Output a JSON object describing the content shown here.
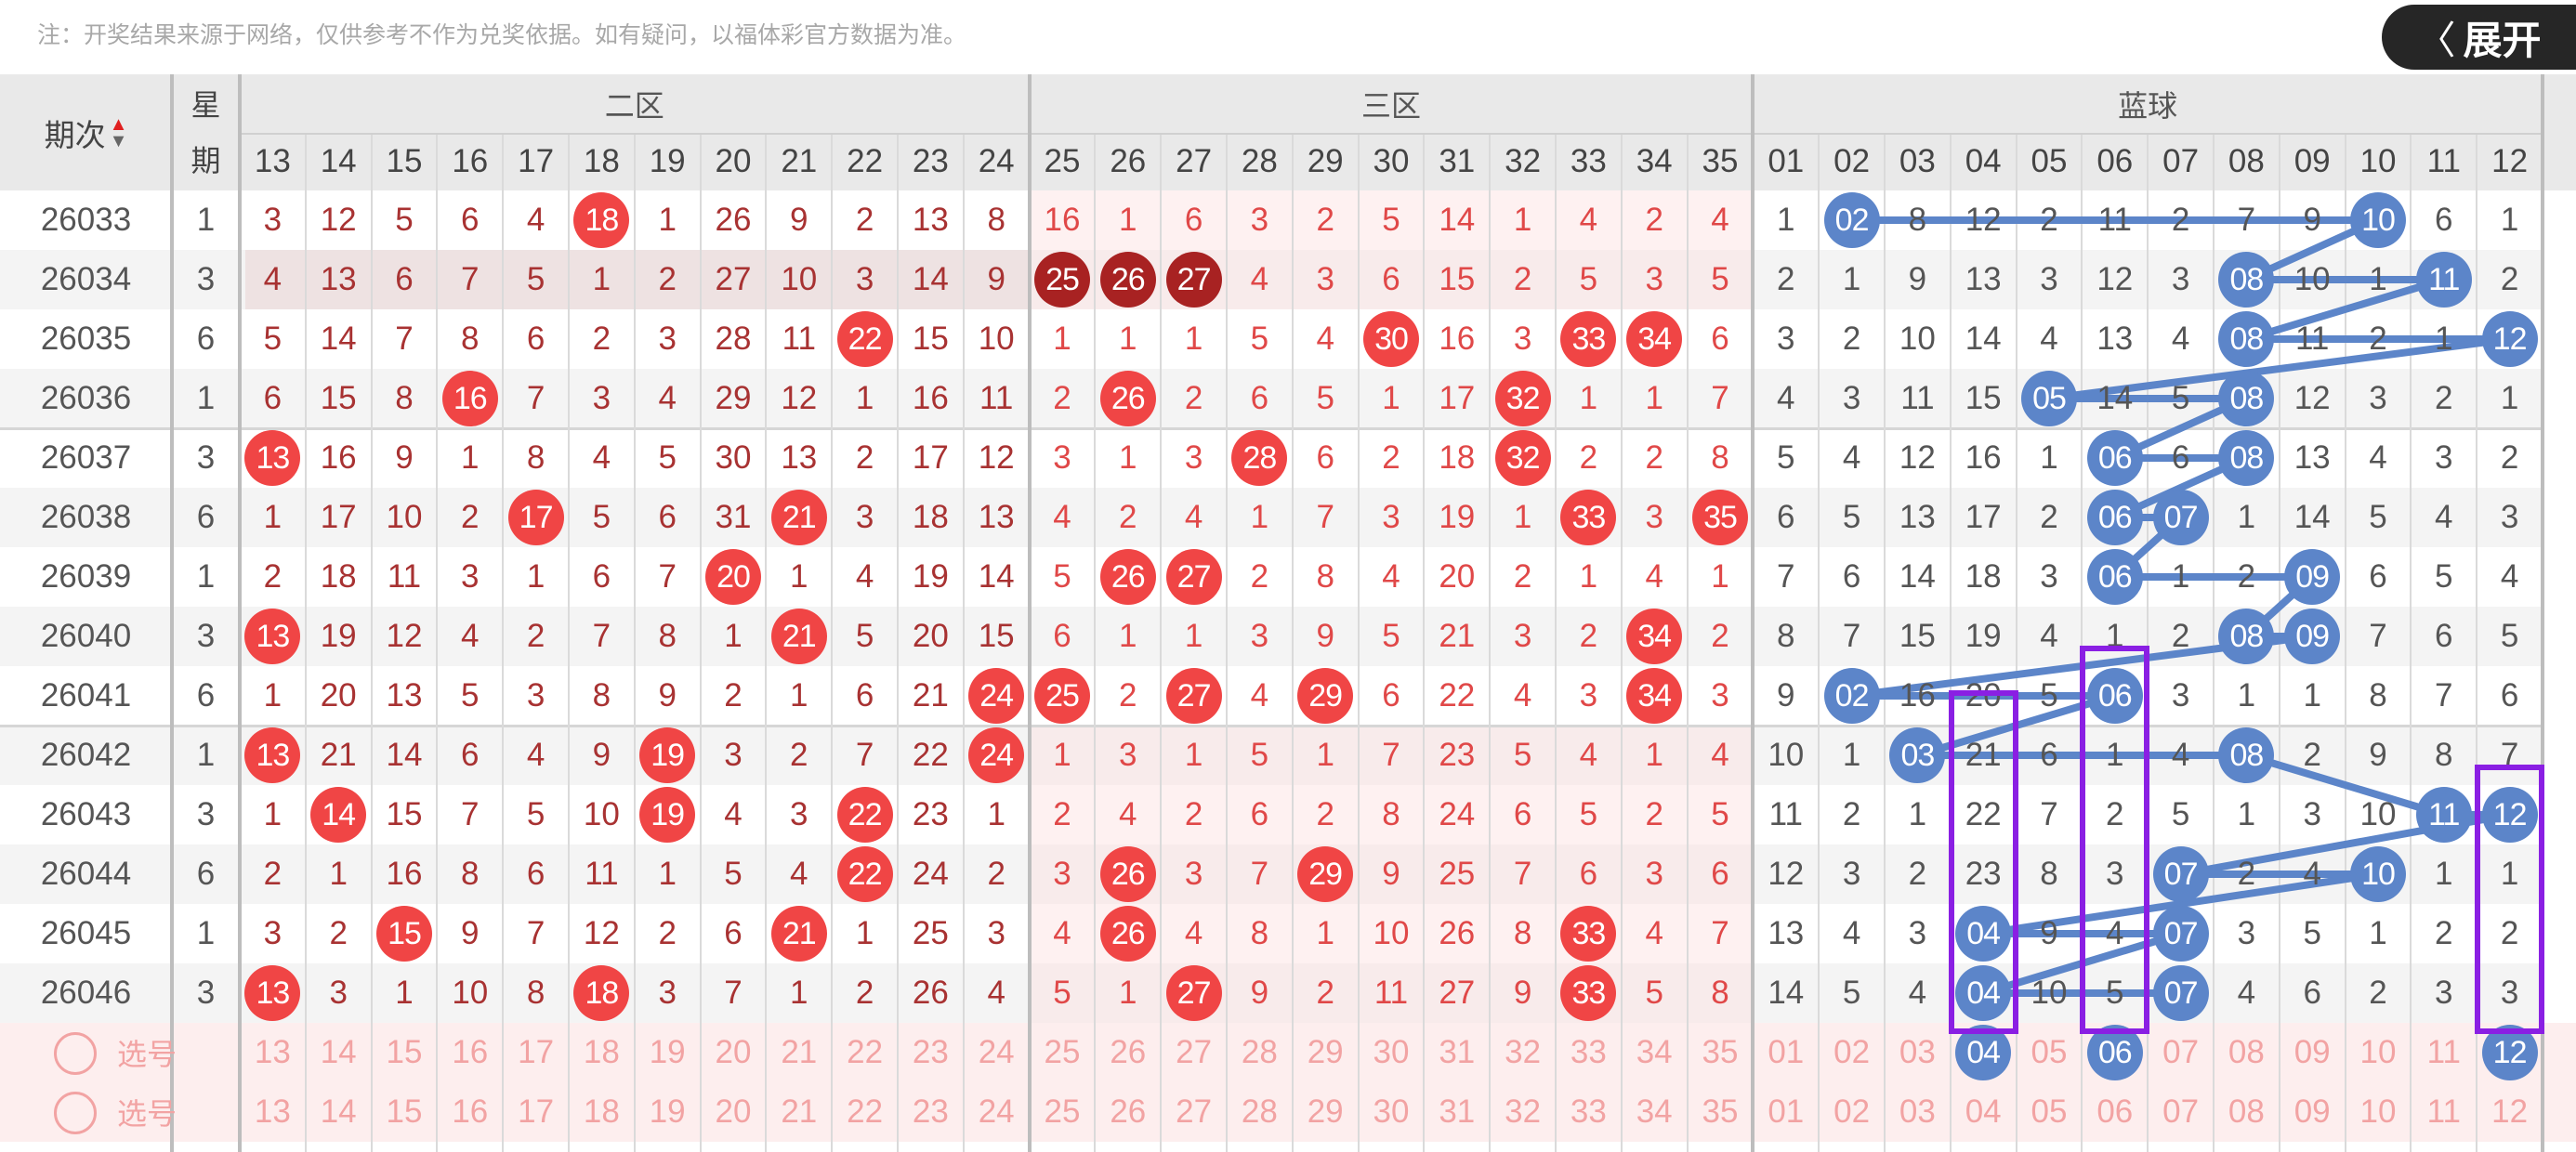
{
  "notice": "注：开奖结果来源于网络，仅供参考不作为兑奖依据。如有疑问，以福体彩官方数据为准。",
  "header": {
    "period_label": "期次",
    "weekday_label": [
      "星",
      "期"
    ],
    "sort_icons": [
      "sort-up-icon",
      "sort-down-icon"
    ],
    "zones": [
      {
        "label": "二区",
        "numbers": [
          "13",
          "14",
          "15",
          "16",
          "17",
          "18",
          "19",
          "20",
          "21",
          "22",
          "23",
          "24"
        ]
      },
      {
        "label": "三区",
        "numbers": [
          "25",
          "26",
          "27",
          "28",
          "29",
          "30",
          "31",
          "32",
          "33",
          "34",
          "35"
        ]
      },
      {
        "label": "蓝球",
        "numbers": [
          "01",
          "02",
          "03",
          "04",
          "05",
          "06",
          "07",
          "08",
          "09",
          "10",
          "11",
          "12"
        ]
      }
    ]
  },
  "rows": [
    {
      "period": "26033",
      "weekday": "1",
      "zone2": [
        "3",
        "12",
        "5",
        "6",
        "4",
        "18",
        "1",
        "26",
        "9",
        "2",
        "13",
        "8"
      ],
      "zone2_hits": [
        "18"
      ],
      "zone3": [
        "16",
        "1",
        "6",
        "3",
        "2",
        "5",
        "14",
        "1",
        "4",
        "2",
        "4"
      ],
      "zone3_hits": [],
      "blue": [
        "1",
        "02",
        "8",
        "12",
        "2",
        "11",
        "2",
        "7",
        "9",
        "10",
        "6",
        "1"
      ],
      "blue_hits": [
        "02",
        "10"
      ]
    },
    {
      "period": "26034",
      "weekday": "3",
      "zone2": [
        "4",
        "13",
        "6",
        "7",
        "5",
        "1",
        "2",
        "27",
        "10",
        "3",
        "14",
        "9"
      ],
      "zone2_hits": [],
      "zone3": [
        "25",
        "26",
        "27",
        "4",
        "3",
        "6",
        "15",
        "2",
        "5",
        "3",
        "5"
      ],
      "zone3_hits": [
        "25",
        "26",
        "27"
      ],
      "blue": [
        "2",
        "1",
        "9",
        "13",
        "3",
        "12",
        "3",
        "08",
        "10",
        "1",
        "11",
        "2"
      ],
      "blue_hits": [
        "08",
        "11"
      ],
      "highlighted": true
    },
    {
      "period": "26035",
      "weekday": "6",
      "zone2": [
        "5",
        "14",
        "7",
        "8",
        "6",
        "2",
        "3",
        "28",
        "11",
        "22",
        "15",
        "10"
      ],
      "zone2_hits": [
        "22"
      ],
      "zone3": [
        "1",
        "1",
        "1",
        "5",
        "4",
        "30",
        "16",
        "3",
        "33",
        "34",
        "6"
      ],
      "zone3_hits": [
        "30",
        "33",
        "34"
      ],
      "blue": [
        "3",
        "2",
        "10",
        "14",
        "4",
        "13",
        "4",
        "08",
        "11",
        "2",
        "1",
        "12"
      ],
      "blue_hits": [
        "08",
        "12"
      ]
    },
    {
      "period": "26036",
      "weekday": "1",
      "zone2": [
        "6",
        "15",
        "8",
        "16",
        "7",
        "3",
        "4",
        "29",
        "12",
        "1",
        "16",
        "11"
      ],
      "zone2_hits": [
        "16"
      ],
      "zone3": [
        "2",
        "26",
        "2",
        "6",
        "5",
        "1",
        "17",
        "32",
        "1",
        "1",
        "7"
      ],
      "zone3_hits": [
        "26",
        "32"
      ],
      "blue": [
        "4",
        "3",
        "11",
        "15",
        "05",
        "14",
        "5",
        "08",
        "12",
        "3",
        "2",
        "1"
      ],
      "blue_hits": [
        "05",
        "08"
      ]
    },
    {
      "period": "26037",
      "weekday": "3",
      "zone2": [
        "13",
        "16",
        "9",
        "1",
        "8",
        "4",
        "5",
        "30",
        "13",
        "2",
        "17",
        "12"
      ],
      "zone2_hits": [
        "13"
      ],
      "zone3": [
        "3",
        "1",
        "3",
        "28",
        "6",
        "2",
        "18",
        "32",
        "2",
        "2",
        "8"
      ],
      "zone3_hits": [
        "28",
        "32"
      ],
      "blue": [
        "5",
        "4",
        "12",
        "16",
        "1",
        "06",
        "6",
        "08",
        "13",
        "4",
        "3",
        "2"
      ],
      "blue_hits": [
        "06",
        "08"
      ]
    },
    {
      "period": "26038",
      "weekday": "6",
      "zone2": [
        "1",
        "17",
        "10",
        "2",
        "17",
        "5",
        "6",
        "31",
        "21",
        "3",
        "18",
        "13"
      ],
      "zone2_hits": [
        "17",
        "21"
      ],
      "zone3": [
        "4",
        "2",
        "4",
        "1",
        "7",
        "3",
        "19",
        "1",
        "33",
        "3",
        "35"
      ],
      "zone3_hits": [
        "33",
        "35"
      ],
      "blue": [
        "6",
        "5",
        "13",
        "17",
        "2",
        "06",
        "07",
        "1",
        "14",
        "5",
        "4",
        "3"
      ],
      "blue_hits": [
        "06",
        "07"
      ]
    },
    {
      "period": "26039",
      "weekday": "1",
      "zone2": [
        "2",
        "18",
        "11",
        "3",
        "1",
        "6",
        "7",
        "20",
        "1",
        "4",
        "19",
        "14"
      ],
      "zone2_hits": [
        "20"
      ],
      "zone3": [
        "5",
        "26",
        "27",
        "2",
        "8",
        "4",
        "20",
        "2",
        "1",
        "4",
        "1"
      ],
      "zone3_hits": [
        "26",
        "27"
      ],
      "blue": [
        "7",
        "6",
        "14",
        "18",
        "3",
        "06",
        "1",
        "2",
        "09",
        "6",
        "5",
        "4"
      ],
      "blue_hits": [
        "06",
        "09"
      ]
    },
    {
      "period": "26040",
      "weekday": "3",
      "zone2": [
        "13",
        "19",
        "12",
        "4",
        "2",
        "7",
        "8",
        "1",
        "21",
        "5",
        "20",
        "15"
      ],
      "zone2_hits": [
        "13",
        "21"
      ],
      "zone3": [
        "6",
        "1",
        "1",
        "3",
        "9",
        "5",
        "21",
        "3",
        "2",
        "34",
        "2"
      ],
      "zone3_hits": [
        "34"
      ],
      "blue": [
        "8",
        "7",
        "15",
        "19",
        "4",
        "1",
        "2",
        "08",
        "09",
        "7",
        "6",
        "5"
      ],
      "blue_hits": [
        "08",
        "09"
      ]
    },
    {
      "period": "26041",
      "weekday": "6",
      "zone2": [
        "1",
        "20",
        "13",
        "5",
        "3",
        "8",
        "9",
        "2",
        "1",
        "6",
        "21",
        "24"
      ],
      "zone2_hits": [
        "24"
      ],
      "zone3": [
        "25",
        "2",
        "27",
        "4",
        "29",
        "6",
        "22",
        "4",
        "3",
        "34",
        "3"
      ],
      "zone3_hits": [
        "25",
        "27",
        "29",
        "34"
      ],
      "blue": [
        "9",
        "02",
        "16",
        "20",
        "5",
        "06",
        "3",
        "1",
        "1",
        "8",
        "7",
        "6"
      ],
      "blue_hits": [
        "02",
        "06"
      ]
    },
    {
      "period": "26042",
      "weekday": "1",
      "zone2": [
        "13",
        "21",
        "14",
        "6",
        "4",
        "9",
        "19",
        "3",
        "2",
        "7",
        "22",
        "24"
      ],
      "zone2_hits": [
        "13",
        "19",
        "24"
      ],
      "zone3": [
        "1",
        "3",
        "1",
        "5",
        "1",
        "7",
        "23",
        "5",
        "4",
        "1",
        "4"
      ],
      "zone3_hits": [],
      "blue": [
        "10",
        "1",
        "03",
        "21",
        "6",
        "1",
        "4",
        "08",
        "2",
        "9",
        "8",
        "7"
      ],
      "blue_hits": [
        "03",
        "08"
      ]
    },
    {
      "period": "26043",
      "weekday": "3",
      "zone2": [
        "1",
        "14",
        "15",
        "7",
        "5",
        "10",
        "19",
        "4",
        "3",
        "22",
        "23",
        "1"
      ],
      "zone2_hits": [
        "14",
        "19",
        "22"
      ],
      "zone3": [
        "2",
        "4",
        "2",
        "6",
        "2",
        "8",
        "24",
        "6",
        "5",
        "2",
        "5"
      ],
      "zone3_hits": [],
      "blue": [
        "11",
        "2",
        "1",
        "22",
        "7",
        "2",
        "5",
        "1",
        "3",
        "10",
        "11",
        "12"
      ],
      "blue_hits": [
        "11",
        "12"
      ]
    },
    {
      "period": "26044",
      "weekday": "6",
      "zone2": [
        "2",
        "1",
        "16",
        "8",
        "6",
        "11",
        "1",
        "5",
        "4",
        "22",
        "24",
        "2"
      ],
      "zone2_hits": [
        "22"
      ],
      "zone3": [
        "3",
        "26",
        "3",
        "7",
        "29",
        "9",
        "25",
        "7",
        "6",
        "3",
        "6"
      ],
      "zone3_hits": [
        "26",
        "29"
      ],
      "blue": [
        "12",
        "3",
        "2",
        "23",
        "8",
        "3",
        "07",
        "2",
        "4",
        "10",
        "1",
        "1"
      ],
      "blue_hits": [
        "07",
        "10"
      ]
    },
    {
      "period": "26045",
      "weekday": "1",
      "zone2": [
        "3",
        "2",
        "15",
        "9",
        "7",
        "12",
        "2",
        "6",
        "21",
        "1",
        "25",
        "3"
      ],
      "zone2_hits": [
        "15",
        "21"
      ],
      "zone3": [
        "4",
        "26",
        "4",
        "8",
        "1",
        "10",
        "26",
        "8",
        "33",
        "4",
        "7"
      ],
      "zone3_hits": [
        "26",
        "33"
      ],
      "blue": [
        "13",
        "4",
        "3",
        "04",
        "9",
        "4",
        "07",
        "3",
        "5",
        "1",
        "2",
        "2"
      ],
      "blue_hits": [
        "04",
        "07"
      ]
    },
    {
      "period": "26046",
      "weekday": "3",
      "zone2": [
        "13",
        "3",
        "1",
        "10",
        "8",
        "18",
        "3",
        "7",
        "1",
        "2",
        "26",
        "4"
      ],
      "zone2_hits": [
        "13",
        "18"
      ],
      "zone3": [
        "5",
        "1",
        "27",
        "9",
        "2",
        "11",
        "27",
        "9",
        "33",
        "5",
        "8"
      ],
      "zone3_hits": [
        "27",
        "33"
      ],
      "blue": [
        "14",
        "5",
        "4",
        "04",
        "10",
        "5",
        "07",
        "4",
        "6",
        "2",
        "3",
        "3"
      ],
      "blue_hits": [
        "04",
        "07"
      ]
    }
  ],
  "select_rows": [
    {
      "label": "选号",
      "blue_selected": [
        "04",
        "06",
        "12"
      ]
    },
    {
      "label": "选号",
      "blue_selected": []
    }
  ],
  "annotation_boxes": [
    {
      "column": "04",
      "from_period": "26042",
      "to": "select-row-1"
    },
    {
      "column": "06",
      "from_period": "26041",
      "to": "select-row-1"
    },
    {
      "column": "12",
      "from_period": "26043",
      "to": "select-row-1"
    }
  ],
  "expand_button": {
    "label": "展开",
    "icon": "chevron-left-icon"
  },
  "colors": {
    "red_ball": "#f04545",
    "highlight_ball": "#a82222",
    "blue_ball": "#5c85c9",
    "annotation": "#8a1fe3",
    "zone2_text": "#a83232",
    "zone3_text": "#e04848"
  }
}
